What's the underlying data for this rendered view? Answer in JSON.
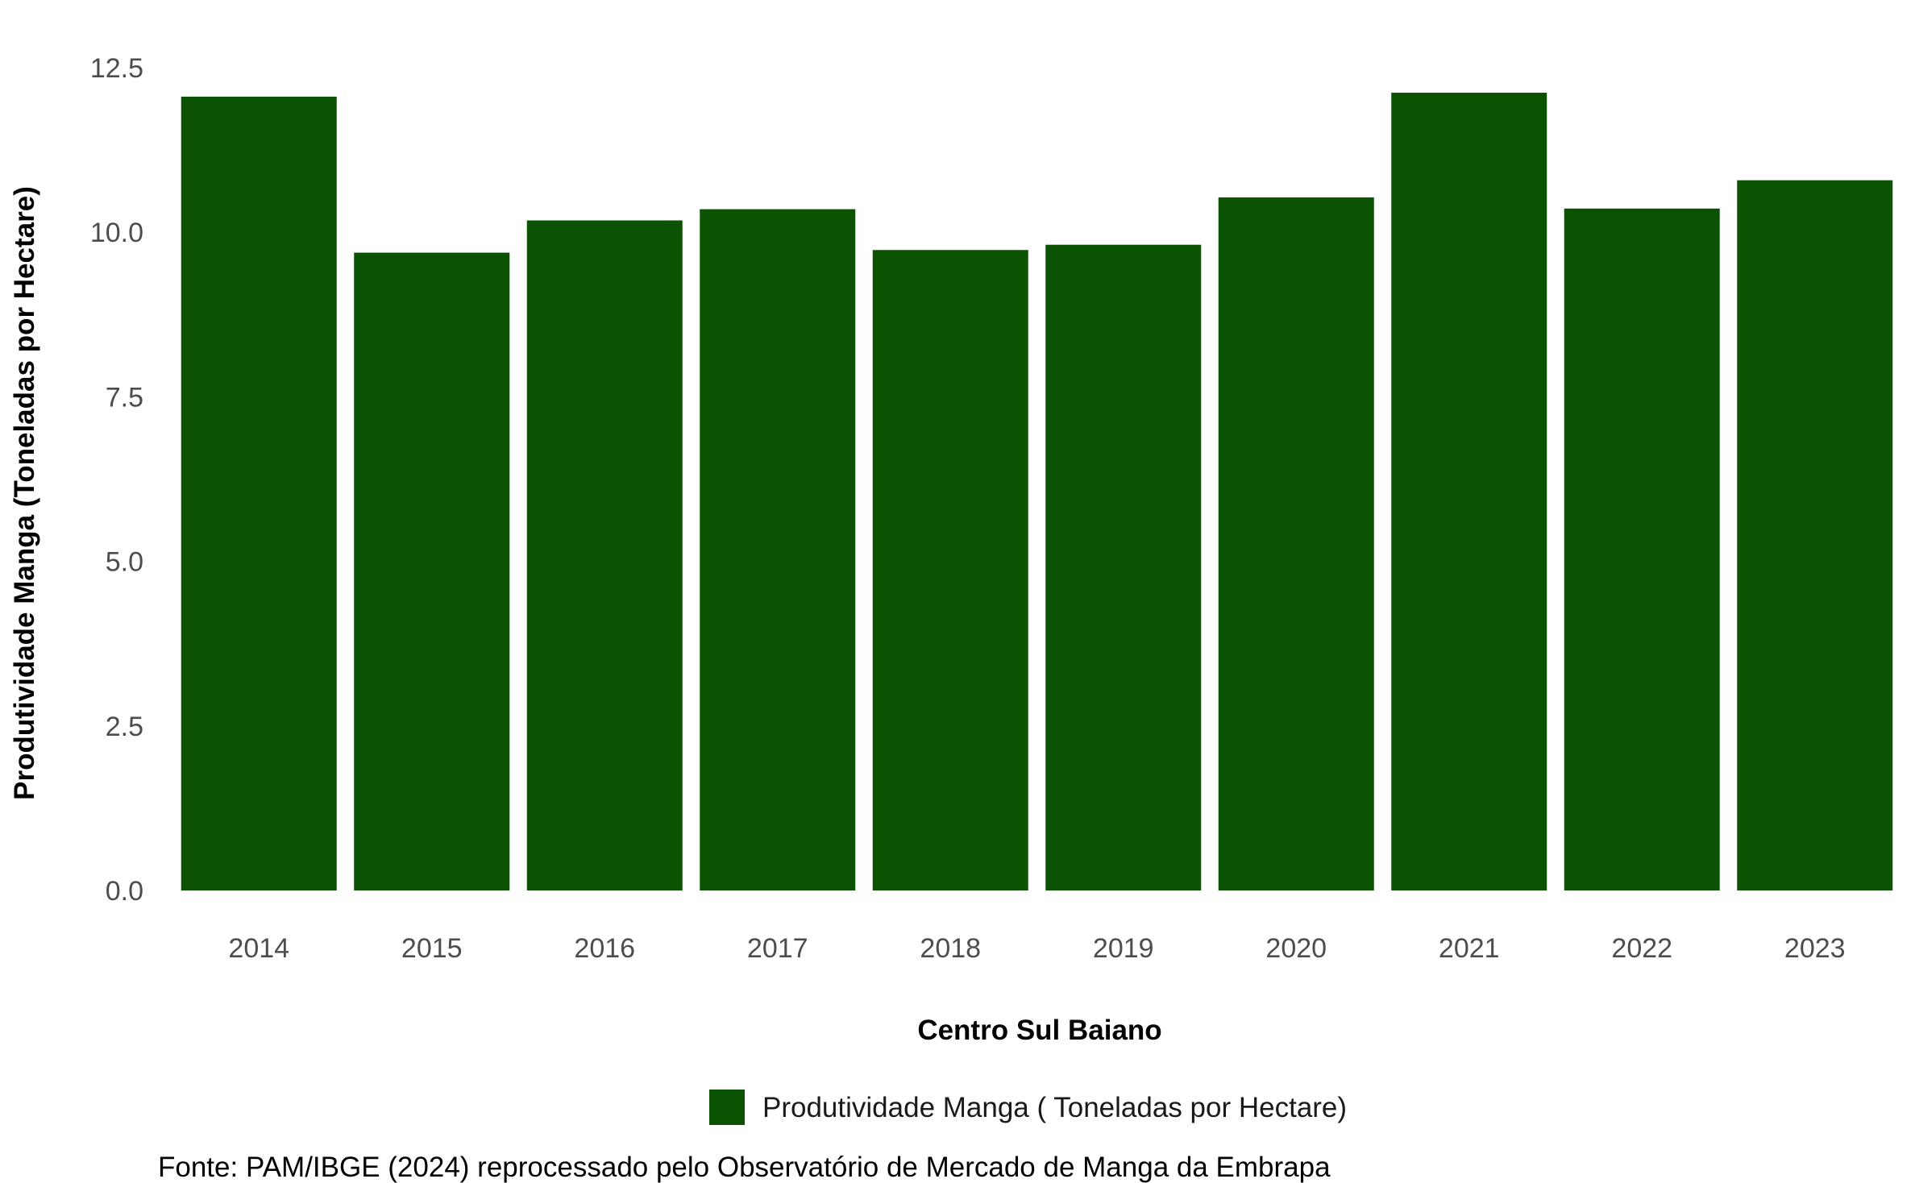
{
  "chart_data": {
    "type": "bar",
    "categories": [
      "2014",
      "2015",
      "2016",
      "2017",
      "2018",
      "2019",
      "2020",
      "2021",
      "2022",
      "2023"
    ],
    "series": [
      {
        "name": "Produtividade Manga ( Toneladas por Hectare)",
        "color": "#0b5203",
        "values": [
          12.06,
          9.69,
          10.18,
          10.35,
          9.73,
          9.81,
          10.53,
          12.12,
          10.36,
          10.79
        ]
      }
    ],
    "xlabel": "Centro Sul Baiano",
    "ylabel": "Produtividade Manga (Toneladas por Hectare)",
    "ylim": [
      0,
      12.5
    ],
    "yticks": [
      "0.0",
      "2.5",
      "5.0",
      "7.5",
      "10.0",
      "12.5"
    ],
    "grid": false,
    "legend_position": "bottom",
    "caption": "Fonte: PAM/IBGE (2024) reprocessado pelo Observatório de Mercado de Manga da Embrapa"
  }
}
